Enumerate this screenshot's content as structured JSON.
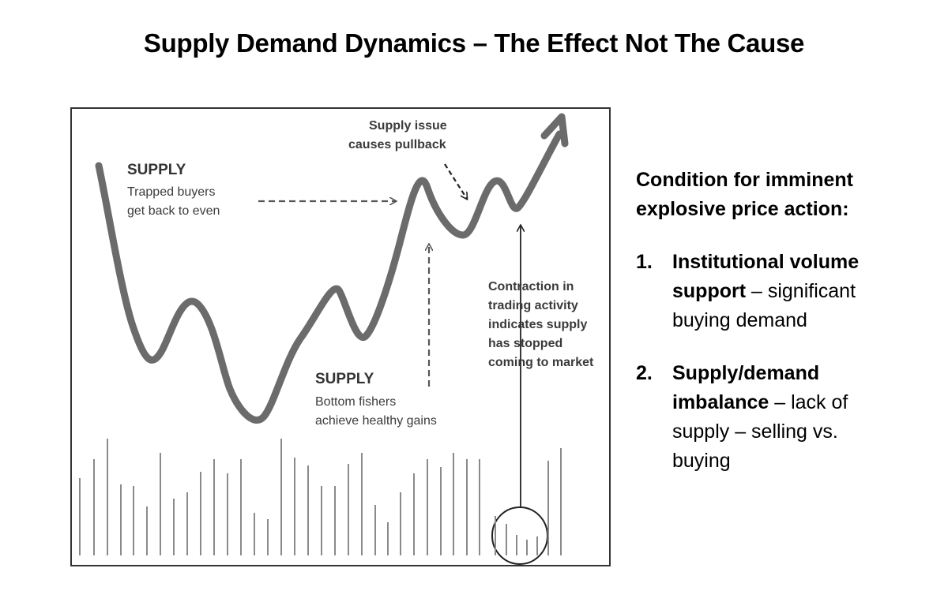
{
  "title": "Supply Demand Dynamics – The Effect Not The Cause",
  "diagram": {
    "supply_top_heading": "SUPPLY",
    "supply_top_line1": "Trapped buyers",
    "supply_top_line2": "get back to even",
    "supply_bottom_heading": "SUPPLY",
    "supply_bottom_line1": "Bottom fishers",
    "supply_bottom_line2": "achieve healthy gains",
    "supply_issue_line1": "Supply issue",
    "supply_issue_line2": "causes pullback",
    "contraction_lines": [
      "Contraction in",
      "trading activity",
      "indicates supply",
      "has stopped",
      "coming to market"
    ]
  },
  "right_panel": {
    "condition": "Condition for imminent explosive price action:",
    "items": [
      {
        "number": "1.",
        "bold": "Institutional volume support",
        "rest": " – significant buying demand"
      },
      {
        "number": "2.",
        "bold": "Supply/demand imbalance",
        "rest": " – lack of supply – selling vs. buying"
      }
    ]
  },
  "colors": {
    "price_line": "#6b6b6b",
    "arrow": "#555555",
    "volume_bar": "#8a8a8a"
  }
}
